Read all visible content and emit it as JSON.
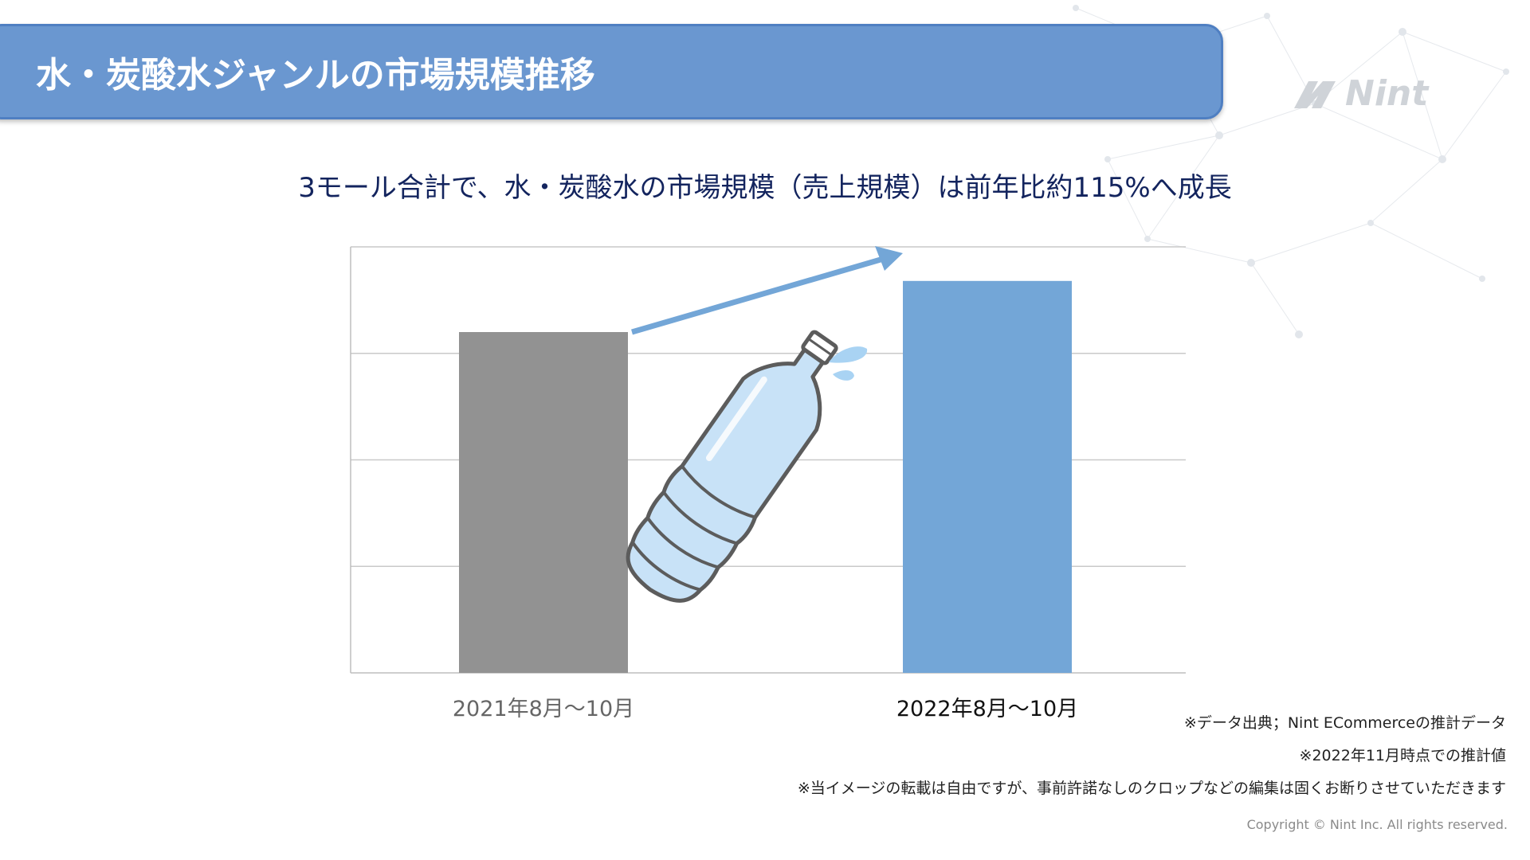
{
  "header": {
    "title": "水・炭酸水ジャンルの市場規模推移"
  },
  "logo": {
    "text": "Nint"
  },
  "subtitle": "3モール合計で、水・炭酸水の市場規模（売上規模）は前年比約115%へ成長",
  "chart_data": {
    "type": "bar",
    "categories": [
      "2021年8月〜10月",
      "2022年8月〜10月"
    ],
    "values": [
      100,
      115
    ],
    "ylim": [
      0,
      125
    ],
    "grid": true,
    "colors": [
      "#929292",
      "#73a6d7"
    ],
    "annotation": "growth-arrow"
  },
  "notes": [
    "※データ出典；Nint ECommerceの推計データ",
    "※2022年11月時点での推計値",
    "※当イメージの転載は自由ですが、事前許諾なしのクロップなどの編集は固くお断りさせていただきます"
  ],
  "copyright": "Copyright © Nint Inc. All rights reserved.",
  "colors": {
    "header": "#6a97d0",
    "subtitle": "#13245e",
    "arrow": "#73a6d7"
  },
  "illustration": "water-bottle-icon"
}
